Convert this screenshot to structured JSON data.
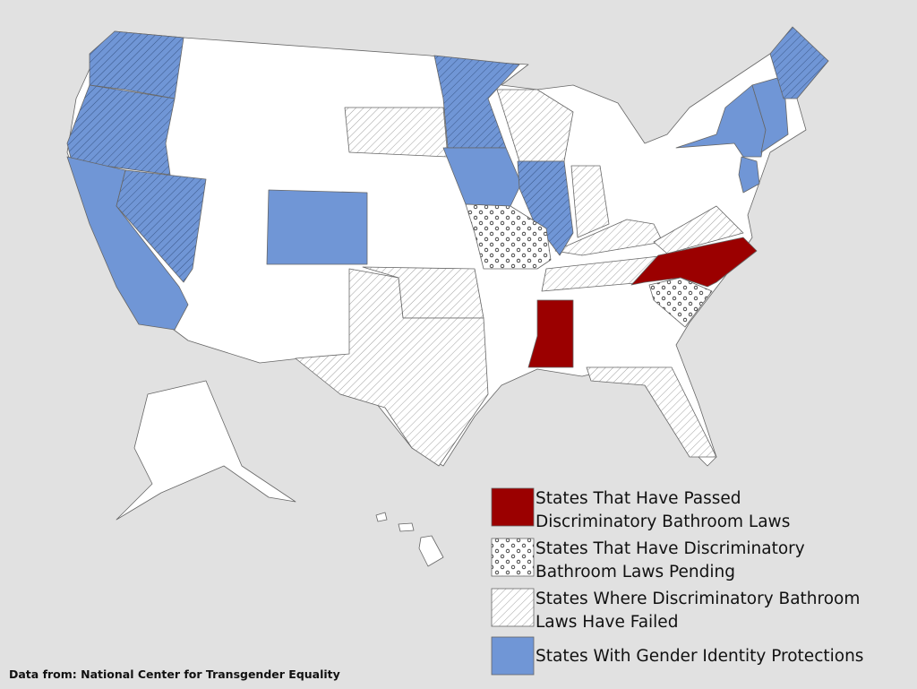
{
  "legend": {
    "items": [
      {
        "label": [
          "States That Have Passed",
          "Discriminatory Bathroom Laws"
        ],
        "color": "#9b0000",
        "pattern": "none"
      },
      {
        "label": [
          "States That Have Discriminatory",
          "Bathroom Laws Pending"
        ],
        "color": "#ffffff",
        "pattern": "dots"
      },
      {
        "label": [
          "States Where Discriminatory Bathroom",
          "Laws Have Failed"
        ],
        "color": "#ffffff",
        "pattern": "hatch"
      },
      {
        "label": [
          "States With Gender Identity Protections"
        ],
        "color": "#7096d6",
        "pattern": "none"
      }
    ]
  },
  "source": "Data from: National Center for Transgender Equality"
}
